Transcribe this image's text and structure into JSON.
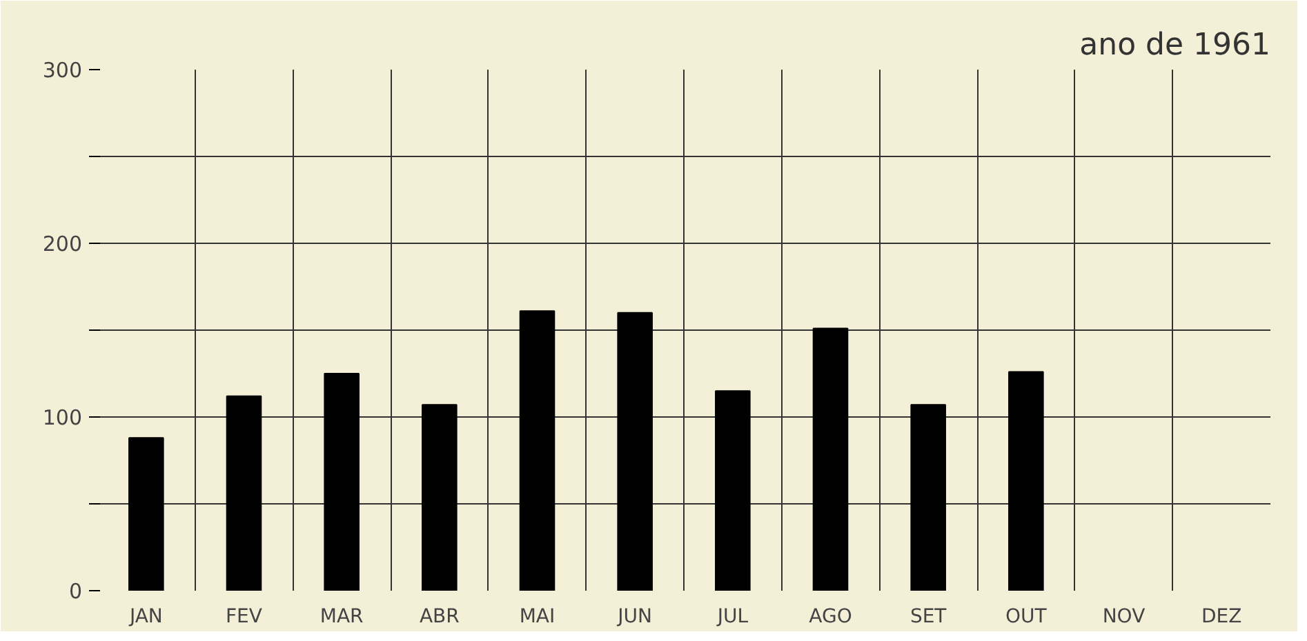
{
  "chart_data": {
    "type": "bar",
    "title": "ano de 1961",
    "categories": [
      "JAN",
      "FEV",
      "MAR",
      "ABR",
      "MAI",
      "JUN",
      "JUL",
      "AGO",
      "SET",
      "OUT",
      "NOV",
      "DEZ"
    ],
    "values": [
      88,
      112,
      125,
      107,
      161,
      160,
      115,
      151,
      107,
      126,
      null,
      null
    ],
    "color": "#000000",
    "ylim": [
      0,
      300
    ],
    "yticks": [
      0,
      {
        "value": 50,
        "label": null
      },
      100,
      {
        "value": 150,
        "label": null
      },
      200,
      {
        "value": 250,
        "label": null
      },
      300
    ],
    "grid": true
  }
}
